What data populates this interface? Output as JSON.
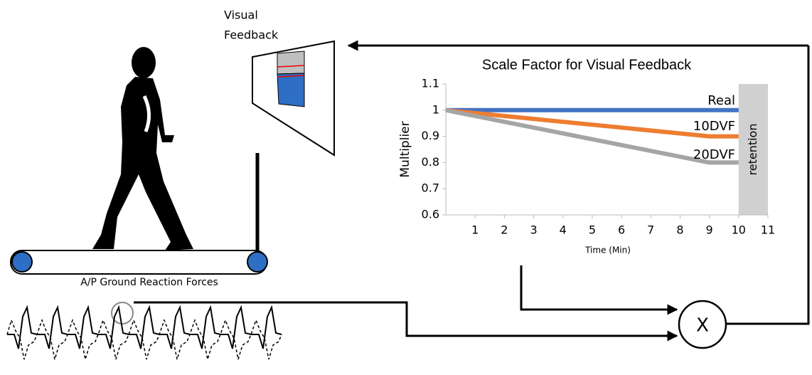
{
  "labels": {
    "visual_feedback": [
      "Visual",
      "Feedback"
    ],
    "forces": "A/P Ground Reaction Forces",
    "multiply": "X"
  },
  "chart_data": {
    "type": "line",
    "title": "Scale Factor for Visual Feedback",
    "x_label": "Time (Min)",
    "y_label": "Multiplier",
    "xlim": [
      0,
      11
    ],
    "xticks": [
      1,
      2,
      3,
      4,
      5,
      6,
      7,
      8,
      9,
      10,
      11
    ],
    "ylim": [
      0.6,
      1.1
    ],
    "yticks": [
      0.6,
      0.7,
      0.8,
      0.9,
      1,
      1.1
    ],
    "shaded_region": {
      "xlim": [
        10,
        11
      ],
      "label": "retention",
      "color": "#d0d0d0"
    },
    "series": [
      {
        "name": "Real",
        "color": "#4472c4",
        "x": [
          0,
          10
        ],
        "values": [
          1,
          1
        ]
      },
      {
        "name": "10DVF",
        "color": "#ed7d31",
        "x": [
          0,
          9,
          10
        ],
        "values": [
          1,
          0.9,
          0.9
        ]
      },
      {
        "name": "20DVF",
        "color": "#a5a5a5",
        "x": [
          0,
          9,
          10
        ],
        "values": [
          1,
          0.8,
          0.8
        ]
      }
    ]
  }
}
